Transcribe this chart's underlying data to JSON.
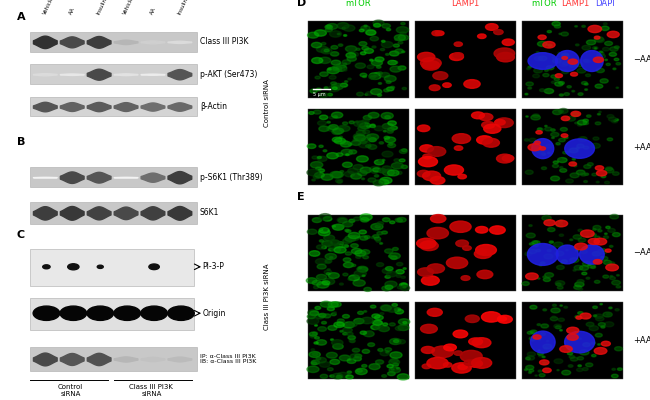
{
  "fig_width": 6.5,
  "fig_height": 4.0,
  "bg_color": "#ffffff",
  "panel_A_label": "A",
  "panel_B_label": "B",
  "panel_C_label": "C",
  "panel_D_label": "D",
  "panel_E_label": "E",
  "col_labels": [
    "Vehicle",
    "AA",
    "Insulin",
    "Vehicle",
    "AA",
    "Insulin"
  ],
  "wb_labels_A": [
    "Class III PI3K",
    "p-AKT (Ser473)",
    "β-Actin"
  ],
  "wb_labels_B": [
    "p-S6K1 (Thr389)",
    "S6K1"
  ],
  "wb_labels_C": [
    "PI-3-P",
    "Origin",
    "IP: α-Class III PI3K\nIB: α-Class III PI3K"
  ],
  "D_row_labels": [
    "−AA",
    "+AA"
  ],
  "E_row_labels": [
    "−AA",
    "+AA"
  ],
  "panel_D_siRNA_label": "Control siRNA",
  "panel_E_siRNA_label": "Class III PI3K siRNA",
  "scale_bar_text": "5 μm",
  "A_bands": [
    [
      0.85,
      0.75,
      0.8,
      0.3,
      0.2,
      0.15
    ],
    [
      0.15,
      0.1,
      0.75,
      0.12,
      0.08,
      0.7
    ],
    [
      0.7,
      0.65,
      0.68,
      0.65,
      0.6,
      0.62
    ]
  ],
  "B_bands": [
    [
      0.05,
      0.75,
      0.7,
      0.05,
      0.6,
      0.8
    ],
    [
      0.8,
      0.82,
      0.78,
      0.75,
      0.79,
      0.82
    ]
  ],
  "C_pi3p_spots": [
    {
      "x": 0,
      "size": 0.3
    },
    {
      "x": 1,
      "size": 0.7
    },
    {
      "x": 2,
      "size": 0.2
    },
    {
      "x": 3,
      "size": 0.05
    },
    {
      "x": 4,
      "size": 0.6
    },
    {
      "x": 5,
      "size": 0.05
    }
  ],
  "C_origin_spots": [
    {
      "x": 0,
      "size": 0.9
    },
    {
      "x": 1,
      "size": 0.9
    },
    {
      "x": 2,
      "size": 0.9
    },
    {
      "x": 3,
      "size": 0.9
    },
    {
      "x": 4,
      "size": 0.9
    },
    {
      "x": 5,
      "size": 0.9
    }
  ],
  "C_ip_bands": [
    0.75,
    0.7,
    0.72,
    0.3,
    0.25,
    0.28
  ]
}
